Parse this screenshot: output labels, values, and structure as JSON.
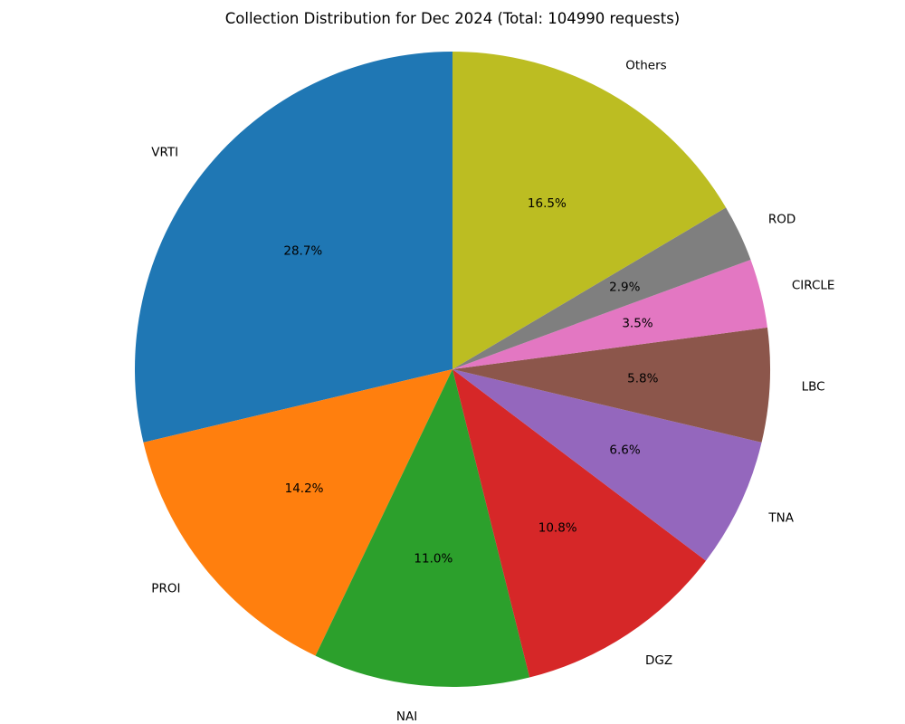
{
  "chart_data": {
    "type": "pie",
    "title": "Collection Distribution for Dec 2024 (Total: 104990 requests)",
    "start_angle_deg": 90,
    "direction": "counterclockwise",
    "slices": [
      {
        "label": "VRTI",
        "value": 28.7,
        "pct_label": "28.7%",
        "color": "#1f77b4"
      },
      {
        "label": "PROI",
        "value": 14.2,
        "pct_label": "14.2%",
        "color": "#ff7f0e"
      },
      {
        "label": "NAI",
        "value": 11.0,
        "pct_label": "11.0%",
        "color": "#2ca02c"
      },
      {
        "label": "DGZ",
        "value": 10.8,
        "pct_label": "10.8%",
        "color": "#d62728"
      },
      {
        "label": "TNA",
        "value": 6.6,
        "pct_label": "6.6%",
        "color": "#9467bd"
      },
      {
        "label": "LBC",
        "value": 5.8,
        "pct_label": "5.8%",
        "color": "#8c564b"
      },
      {
        "label": "CIRCLE",
        "value": 3.5,
        "pct_label": "3.5%",
        "color": "#e377c2"
      },
      {
        "label": "ROD",
        "value": 2.9,
        "pct_label": "2.9%",
        "color": "#7f7f7f"
      },
      {
        "label": "Others",
        "value": 16.5,
        "pct_label": "16.5%",
        "color": "#bcbd22"
      }
    ]
  }
}
